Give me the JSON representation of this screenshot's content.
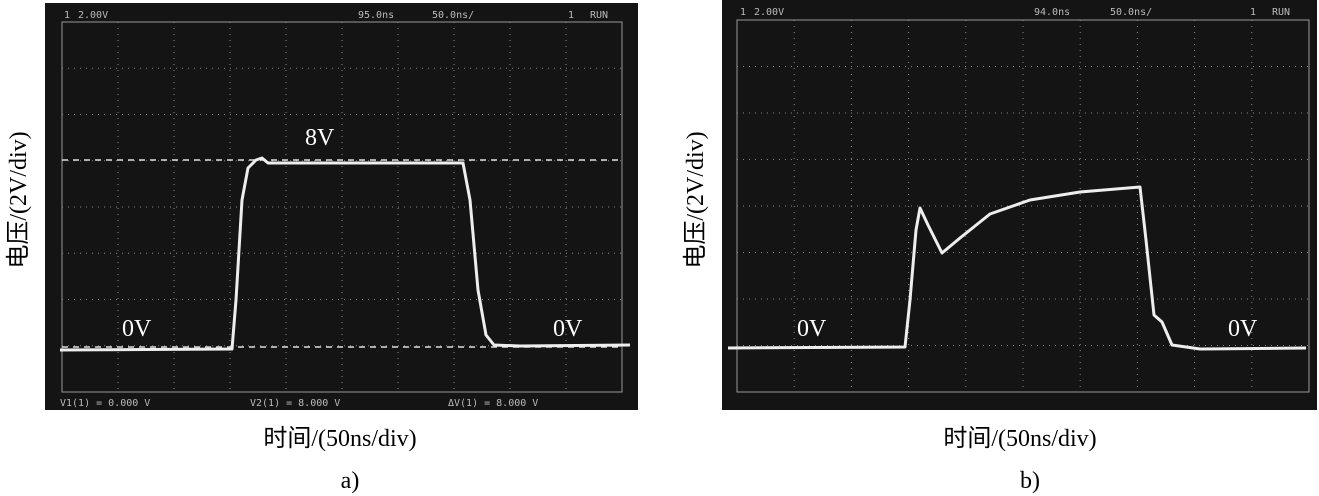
{
  "panels": [
    {
      "header": {
        "channel": "1",
        "volts": "2.00V",
        "delay": "95.0ns",
        "timebase": "50.0ns/",
        "status": "RUN"
      },
      "readouts": [
        "V1(1) = 0.000 V",
        "V2(1) = 8.000 V",
        "ΔV(1) = 8.000 V"
      ],
      "labels": {
        "high": "8V",
        "low_left": "0V",
        "low_right": "0V"
      },
      "y_label": "电压/(2V/div)",
      "x_label": "时间/(50ns/div)",
      "caption": "a)"
    },
    {
      "header": {
        "channel": "1",
        "volts": "2.00V",
        "delay": "94.0ns",
        "timebase": "50.0ns/",
        "status": "RUN"
      },
      "labels": {
        "low_left": "0V",
        "low_right": "0V"
      },
      "y_label": "电压/(2V/div)",
      "x_label": "时间/(50ns/div)",
      "caption": "b)"
    }
  ]
}
